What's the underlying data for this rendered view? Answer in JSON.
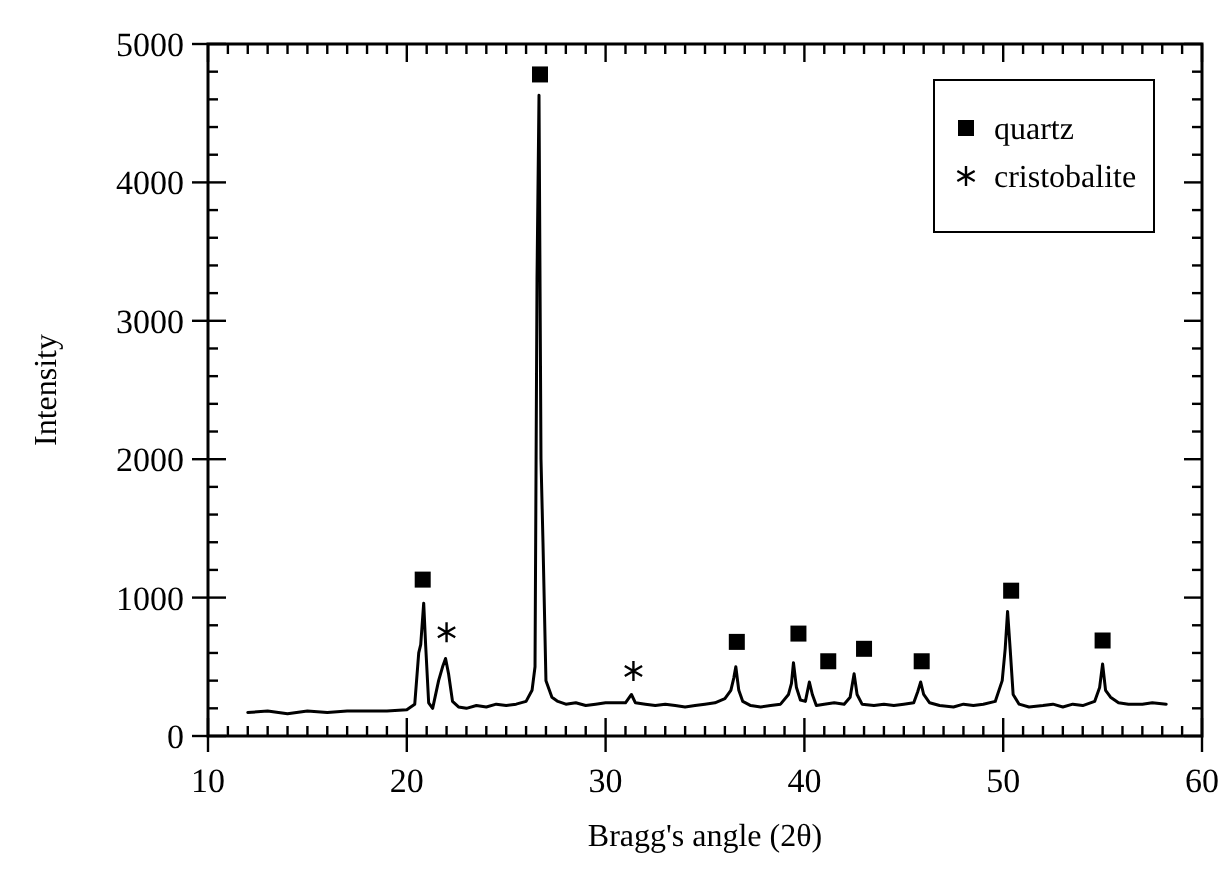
{
  "chart_data": {
    "type": "line",
    "xlabel": "Bragg's angle (2θ)",
    "ylabel": "Intensity",
    "xlim": [
      10,
      60
    ],
    "ylim": [
      0,
      5000
    ],
    "xticks": [
      10,
      {
        "value": 11,
        "label": null
      },
      {
        "value": 12,
        "label": null
      },
      {
        "value": 13,
        "label": null
      },
      {
        "value": 14,
        "label": null
      },
      {
        "value": 15,
        "label": null
      },
      {
        "value": 16,
        "label": null
      },
      {
        "value": 17,
        "label": null
      },
      {
        "value": 18,
        "label": null
      },
      {
        "value": 19,
        "label": null
      },
      20,
      {
        "value": 21,
        "label": null
      },
      {
        "value": 22,
        "label": null
      },
      {
        "value": 23,
        "label": null
      },
      {
        "value": 24,
        "label": null
      },
      {
        "value": 25,
        "label": null
      },
      {
        "value": 26,
        "label": null
      },
      {
        "value": 27,
        "label": null
      },
      {
        "value": 28,
        "label": null
      },
      {
        "value": 29,
        "label": null
      },
      30,
      {
        "value": 31,
        "label": null
      },
      {
        "value": 32,
        "label": null
      },
      {
        "value": 33,
        "label": null
      },
      {
        "value": 34,
        "label": null
      },
      {
        "value": 35,
        "label": null
      },
      {
        "value": 36,
        "label": null
      },
      {
        "value": 37,
        "label": null
      },
      {
        "value": 38,
        "label": null
      },
      {
        "value": 39,
        "label": null
      },
      40,
      {
        "value": 41,
        "label": null
      },
      {
        "value": 42,
        "label": null
      },
      {
        "value": 43,
        "label": null
      },
      {
        "value": 44,
        "label": null
      },
      {
        "value": 45,
        "label": null
      },
      {
        "value": 46,
        "label": null
      },
      {
        "value": 47,
        "label": null
      },
      {
        "value": 48,
        "label": null
      },
      {
        "value": 49,
        "label": null
      },
      50,
      {
        "value": 51,
        "label": null
      },
      {
        "value": 52,
        "label": null
      },
      {
        "value": 53,
        "label": null
      },
      {
        "value": 54,
        "label": null
      },
      {
        "value": 55,
        "label": null
      },
      {
        "value": 56,
        "label": null
      },
      {
        "value": 57,
        "label": null
      },
      {
        "value": 58,
        "label": null
      },
      {
        "value": 59,
        "label": null
      },
      60
    ],
    "yticks": [
      0,
      {
        "value": 200,
        "label": null
      },
      {
        "value": 400,
        "label": null
      },
      {
        "value": 600,
        "label": null
      },
      {
        "value": 800,
        "label": null
      },
      1000,
      {
        "value": 1200,
        "label": null
      },
      {
        "value": 1400,
        "label": null
      },
      {
        "value": 1600,
        "label": null
      },
      {
        "value": 1800,
        "label": null
      },
      2000,
      {
        "value": 2200,
        "label": null
      },
      {
        "value": 2400,
        "label": null
      },
      {
        "value": 2600,
        "label": null
      },
      {
        "value": 2800,
        "label": null
      },
      3000,
      {
        "value": 3200,
        "label": null
      },
      {
        "value": 3400,
        "label": null
      },
      {
        "value": 3600,
        "label": null
      },
      {
        "value": 3800,
        "label": null
      },
      4000,
      {
        "value": 4200,
        "label": null
      },
      {
        "value": 4400,
        "label": null
      },
      {
        "value": 4600,
        "label": null
      },
      {
        "value": 4800,
        "label": null
      },
      5000
    ],
    "grid": false,
    "legend": "top right",
    "series": [
      {
        "color": "#000000",
        "marker": "none",
        "line_style": "solid",
        "x": [
          12,
          13,
          14,
          15,
          16,
          17,
          18,
          19,
          20,
          20.4,
          20.6,
          20.7,
          20.85,
          20.95,
          21.1,
          21.3,
          21.6,
          21.8,
          21.95,
          22.1,
          22.3,
          22.6,
          23,
          23.5,
          24,
          24.5,
          25,
          25.5,
          26,
          26.3,
          26.45,
          26.55,
          26.65,
          26.75,
          26.85,
          27,
          27.3,
          27.6,
          28,
          28.5,
          29,
          29.5,
          30,
          30.5,
          31,
          31.3,
          31.5,
          32,
          32.5,
          33,
          33.5,
          34,
          34.5,
          35,
          35.5,
          36,
          36.3,
          36.45,
          36.55,
          36.7,
          36.9,
          37.3,
          37.8,
          38.3,
          38.8,
          39.2,
          39.35,
          39.45,
          39.6,
          39.8,
          40.05,
          40.25,
          40.4,
          40.6,
          41,
          41.5,
          42,
          42.3,
          42.5,
          42.65,
          42.9,
          43.5,
          44,
          44.5,
          45,
          45.5,
          45.7,
          45.85,
          46,
          46.3,
          46.8,
          47.5,
          48,
          48.5,
          49,
          49.6,
          49.95,
          50.1,
          50.22,
          50.35,
          50.5,
          50.8,
          51.3,
          52,
          52.5,
          53,
          53.5,
          54,
          54.6,
          54.85,
          55,
          55.15,
          55.4,
          55.8,
          56.3,
          57,
          57.5,
          58.2
        ],
        "values": [
          170,
          180,
          160,
          180,
          170,
          180,
          180,
          180,
          190,
          230,
          600,
          660,
          960,
          650,
          240,
          200,
          400,
          500,
          560,
          450,
          250,
          210,
          200,
          220,
          210,
          230,
          220,
          230,
          250,
          330,
          500,
          3300,
          4630,
          2000,
          1400,
          400,
          280,
          250,
          230,
          240,
          220,
          230,
          240,
          240,
          240,
          300,
          240,
          230,
          220,
          230,
          220,
          210,
          220,
          230,
          240,
          270,
          330,
          420,
          500,
          330,
          250,
          220,
          210,
          220,
          230,
          300,
          380,
          530,
          350,
          260,
          250,
          390,
          300,
          220,
          230,
          240,
          230,
          280,
          450,
          300,
          230,
          220,
          230,
          220,
          230,
          240,
          320,
          390,
          300,
          240,
          220,
          210,
          230,
          220,
          230,
          250,
          400,
          630,
          900,
          630,
          300,
          230,
          210,
          220,
          230,
          210,
          230,
          220,
          250,
          350,
          520,
          330,
          280,
          240,
          230,
          230,
          240,
          230
        ]
      },
      {
        "type": "scatter",
        "name": "quartz",
        "color": "#000000",
        "marker": "square",
        "x": [
          20.8,
          26.7,
          36.6,
          39.7,
          41.2,
          43.0,
          45.9,
          50.4,
          55.0
        ],
        "values": [
          1130,
          4780,
          680,
          740,
          540,
          630,
          540,
          1050,
          690
        ]
      },
      {
        "type": "scatter",
        "name": "cristobalite",
        "color": "#000000",
        "marker": "cross",
        "x": [
          22.0,
          31.4
        ],
        "values": [
          750,
          470
        ]
      }
    ]
  }
}
